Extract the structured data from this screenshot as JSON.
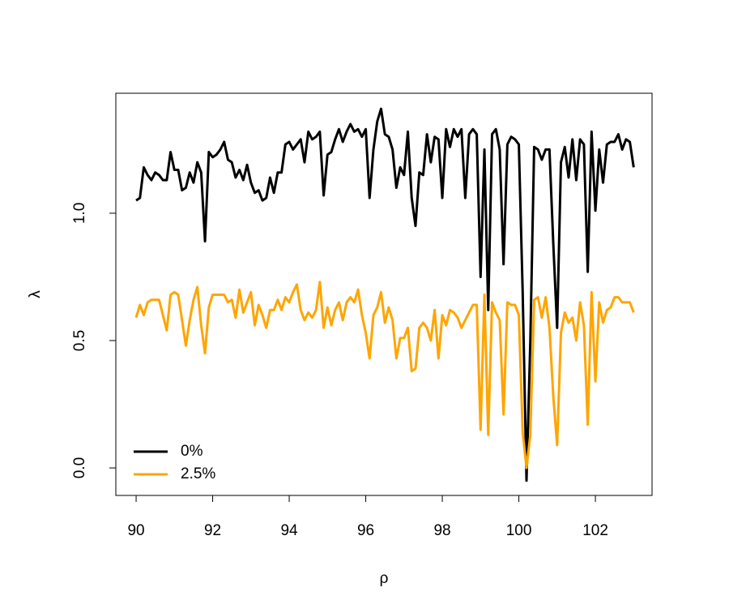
{
  "chart_data": {
    "type": "line",
    "x_label": "ρ",
    "y_label": "λ",
    "x": [
      90.0,
      90.1,
      90.2,
      90.3,
      90.4,
      90.5,
      90.6,
      90.7,
      90.8,
      90.9,
      91.0,
      91.1,
      91.2,
      91.3,
      91.4,
      91.5,
      91.6,
      91.7,
      91.8,
      91.9,
      92.0,
      92.1,
      92.2,
      92.3,
      92.4,
      92.5,
      92.6,
      92.7,
      92.8,
      92.9,
      93.0,
      93.1,
      93.2,
      93.3,
      93.4,
      93.5,
      93.6,
      93.7,
      93.8,
      93.9,
      94.0,
      94.1,
      94.2,
      94.3,
      94.4,
      94.5,
      94.6,
      94.7,
      94.8,
      94.9,
      95.0,
      95.1,
      95.2,
      95.3,
      95.4,
      95.5,
      95.6,
      95.7,
      95.8,
      95.9,
      96.0,
      96.1,
      96.2,
      96.3,
      96.4,
      96.5,
      96.6,
      96.7,
      96.8,
      96.9,
      97.0,
      97.1,
      97.2,
      97.3,
      97.4,
      97.5,
      97.6,
      97.7,
      97.8,
      97.9,
      98.0,
      98.1,
      98.2,
      98.3,
      98.4,
      98.5,
      98.6,
      98.7,
      98.8,
      98.9,
      99.0,
      99.1,
      99.2,
      99.3,
      99.4,
      99.5,
      99.6,
      99.7,
      99.8,
      99.9,
      100.0,
      100.1,
      100.2,
      100.3,
      100.4,
      100.5,
      100.6,
      100.7,
      100.8,
      100.9,
      101.0,
      101.1,
      101.2,
      101.3,
      101.4,
      101.5,
      101.6,
      101.7,
      101.8,
      101.9,
      102.0,
      102.1,
      102.2,
      102.3,
      102.4,
      102.5,
      102.6,
      102.7,
      102.8,
      102.9,
      103.0
    ],
    "series": [
      {
        "name": "0%",
        "color": "#000000",
        "values": [
          1.05,
          1.06,
          1.18,
          1.15,
          1.13,
          1.16,
          1.15,
          1.13,
          1.13,
          1.24,
          1.17,
          1.17,
          1.09,
          1.1,
          1.16,
          1.12,
          1.2,
          1.16,
          0.89,
          1.24,
          1.22,
          1.23,
          1.25,
          1.28,
          1.21,
          1.2,
          1.14,
          1.17,
          1.13,
          1.19,
          1.12,
          1.08,
          1.09,
          1.05,
          1.06,
          1.14,
          1.08,
          1.16,
          1.16,
          1.27,
          1.28,
          1.25,
          1.27,
          1.29,
          1.2,
          1.32,
          1.29,
          1.3,
          1.32,
          1.07,
          1.23,
          1.24,
          1.29,
          1.33,
          1.28,
          1.32,
          1.35,
          1.32,
          1.33,
          1.3,
          1.33,
          1.06,
          1.25,
          1.36,
          1.41,
          1.31,
          1.3,
          1.25,
          1.1,
          1.18,
          1.15,
          1.32,
          1.06,
          0.95,
          1.16,
          1.15,
          1.31,
          1.2,
          1.3,
          1.29,
          1.06,
          1.33,
          1.26,
          1.33,
          1.3,
          1.33,
          1.06,
          1.31,
          1.33,
          1.31,
          0.75,
          1.25,
          0.62,
          1.31,
          1.33,
          1.25,
          0.8,
          1.27,
          1.3,
          1.29,
          1.27,
          0.69,
          -0.05,
          0.5,
          1.26,
          1.25,
          1.21,
          1.25,
          1.25,
          0.88,
          0.55,
          1.2,
          1.26,
          1.14,
          1.29,
          1.13,
          1.29,
          1.27,
          0.77,
          1.32,
          1.01,
          1.25,
          1.12,
          1.27,
          1.28,
          1.28,
          1.31,
          1.25,
          1.29,
          1.28,
          1.18
        ]
      },
      {
        "name": "2.5%",
        "color": "#ffa500",
        "values": [
          0.59,
          0.64,
          0.6,
          0.65,
          0.66,
          0.66,
          0.66,
          0.6,
          0.54,
          0.68,
          0.69,
          0.68,
          0.58,
          0.48,
          0.58,
          0.66,
          0.71,
          0.56,
          0.45,
          0.63,
          0.68,
          0.68,
          0.68,
          0.68,
          0.65,
          0.66,
          0.59,
          0.7,
          0.61,
          0.65,
          0.69,
          0.56,
          0.64,
          0.6,
          0.55,
          0.62,
          0.62,
          0.66,
          0.62,
          0.67,
          0.65,
          0.69,
          0.72,
          0.62,
          0.58,
          0.61,
          0.59,
          0.62,
          0.73,
          0.55,
          0.63,
          0.56,
          0.62,
          0.65,
          0.58,
          0.65,
          0.67,
          0.65,
          0.7,
          0.6,
          0.53,
          0.43,
          0.6,
          0.63,
          0.69,
          0.57,
          0.63,
          0.58,
          0.43,
          0.51,
          0.51,
          0.55,
          0.38,
          0.39,
          0.55,
          0.57,
          0.55,
          0.5,
          0.62,
          0.43,
          0.6,
          0.56,
          0.62,
          0.61,
          0.59,
          0.55,
          0.58,
          0.61,
          0.64,
          0.64,
          0.15,
          0.68,
          0.13,
          0.65,
          0.61,
          0.58,
          0.21,
          0.65,
          0.64,
          0.64,
          0.6,
          0.14,
          0.0,
          0.13,
          0.66,
          0.67,
          0.59,
          0.67,
          0.55,
          0.28,
          0.09,
          0.53,
          0.61,
          0.57,
          0.59,
          0.5,
          0.65,
          0.56,
          0.17,
          0.69,
          0.34,
          0.65,
          0.57,
          0.62,
          0.63,
          0.67,
          0.67,
          0.65,
          0.65,
          0.65,
          0.61
        ]
      }
    ],
    "xlim": [
      89.47,
      103.48
    ],
    "ylim": [
      -0.108,
      1.471
    ],
    "xticks": [
      90,
      92,
      94,
      96,
      98,
      100,
      102
    ],
    "yticks": [
      {
        "value": 0,
        "label": "0.0"
      },
      0.5,
      {
        "value": 1,
        "label": "1.0"
      }
    ],
    "legend": "bottomleft"
  }
}
